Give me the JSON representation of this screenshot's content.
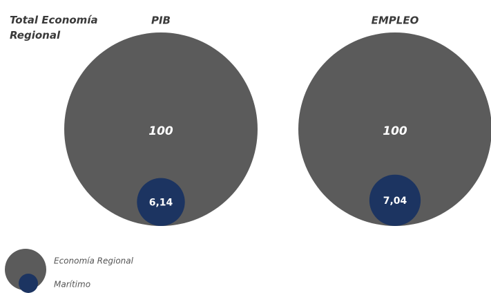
{
  "chart_data": {
    "type": "nested-bubble",
    "title": "Total Economía Regional",
    "categories": [
      "PIB",
      "EMPLEO"
    ],
    "series": [
      {
        "name": "Economía Regional",
        "color": "#5b5b5b",
        "values": [
          100,
          100
        ]
      },
      {
        "name": "Marítimo",
        "color": "#1c3461",
        "values": [
          6.14,
          7.04
        ],
        "value_labels": [
          "6,14",
          "7,04"
        ]
      }
    ]
  }
}
